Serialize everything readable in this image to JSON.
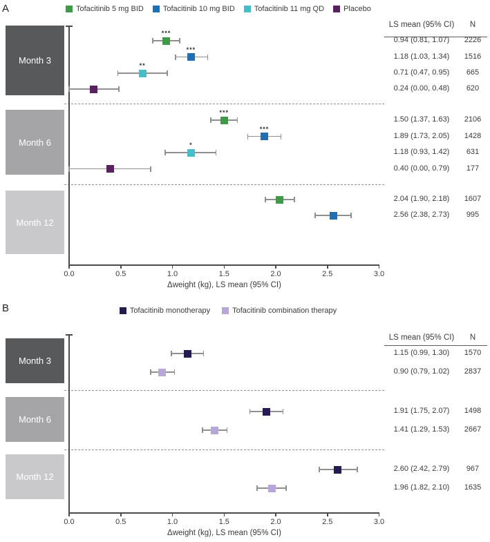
{
  "chart_data": [
    {
      "type": "forest",
      "panel_label": "A",
      "xlabel": "Δweight (kg), LS mean (95% CI)",
      "xlim": [
        0.0,
        3.0
      ],
      "xticks": [
        "0.0",
        "0.5",
        "1.0",
        "1.5",
        "2.0",
        "2.5",
        "3.0"
      ],
      "grid": false,
      "legend_position": "top",
      "legend": [
        {
          "label": "Tofacitinib 5 mg BID",
          "color": "#3d9b45"
        },
        {
          "label": "Tofacitinib 10 mg BID",
          "color": "#1e6fb4"
        },
        {
          "label": "Tofacitinib 11 mg QD",
          "color": "#44bfca"
        },
        {
          "label": "Placebo",
          "color": "#5a2161"
        }
      ],
      "table_headers": [
        "LS mean (95% CI)",
        "N"
      ],
      "groups": [
        {
          "label": "Month 3",
          "box_color": "#58595b",
          "rows": [
            {
              "series": "Tofacitinib 5 mg BID",
              "mean": 0.94,
              "ci": [
                0.81,
                1.07
              ],
              "ci_text": "0.94 (0.81, 1.07)",
              "n": "2226",
              "sig": "***"
            },
            {
              "series": "Tofacitinib 10 mg BID",
              "mean": 1.18,
              "ci": [
                1.03,
                1.34
              ],
              "ci_text": "1.18 (1.03, 1.34)",
              "n": "1516",
              "sig": "***"
            },
            {
              "series": "Tofacitinib 11 mg QD",
              "mean": 0.71,
              "ci": [
                0.47,
                0.95
              ],
              "ci_text": "0.71 (0.47, 0.95)",
              "n": "665",
              "sig": "**"
            },
            {
              "series": "Placebo",
              "mean": 0.24,
              "ci": [
                0.0,
                0.48
              ],
              "ci_text": "0.24 (0.00, 0.48)",
              "n": "620",
              "sig": ""
            }
          ]
        },
        {
          "label": "Month 6",
          "box_color": "#a5a5a7",
          "rows": [
            {
              "series": "Tofacitinib 5 mg BID",
              "mean": 1.5,
              "ci": [
                1.37,
                1.63
              ],
              "ci_text": "1.50 (1.37, 1.63)",
              "n": "2106",
              "sig": "***"
            },
            {
              "series": "Tofacitinib 10 mg BID",
              "mean": 1.89,
              "ci": [
                1.73,
                2.05
              ],
              "ci_text": "1.89 (1.73, 2.05)",
              "n": "1428",
              "sig": "***"
            },
            {
              "series": "Tofacitinib 11 mg QD",
              "mean": 1.18,
              "ci": [
                0.93,
                1.42
              ],
              "ci_text": "1.18 (0.93, 1.42)",
              "n": "631",
              "sig": "*"
            },
            {
              "series": "Placebo",
              "mean": 0.4,
              "ci": [
                0.0,
                0.79
              ],
              "ci_text": "0.40 (0.00, 0.79)",
              "n": "177",
              "sig": ""
            }
          ]
        },
        {
          "label": "Month 12",
          "box_color": "#c9c9cb",
          "rows": [
            {
              "series": "Tofacitinib 5 mg BID",
              "mean": 2.04,
              "ci": [
                1.9,
                2.18
              ],
              "ci_text": "2.04 (1.90, 2.18)",
              "n": "1607",
              "sig": ""
            },
            {
              "series": "Tofacitinib 10 mg BID",
              "mean": 2.56,
              "ci": [
                2.38,
                2.73
              ],
              "ci_text": "2.56 (2.38, 2.73)",
              "n": "995",
              "sig": ""
            }
          ]
        }
      ]
    },
    {
      "type": "forest",
      "panel_label": "B",
      "xlabel": "Δweight (kg), LS mean (95% CI)",
      "xlim": [
        0.0,
        3.0
      ],
      "xticks": [
        "0.0",
        "0.5",
        "1.0",
        "1.5",
        "2.0",
        "2.5",
        "3.0"
      ],
      "grid": false,
      "legend_position": "top",
      "legend": [
        {
          "label": "Tofacitinib monotherapy",
          "color": "#251a52"
        },
        {
          "label": "Tofacitinib combination therapy",
          "color": "#b7a6d9"
        }
      ],
      "table_headers": [
        "LS mean (95% CI)",
        "N"
      ],
      "groups": [
        {
          "label": "Month 3",
          "box_color": "#58595b",
          "rows": [
            {
              "series": "Tofacitinib monotherapy",
              "mean": 1.15,
              "ci": [
                0.99,
                1.3
              ],
              "ci_text": "1.15 (0.99, 1.30)",
              "n": "1570",
              "sig": ""
            },
            {
              "series": "Tofacitinib combination therapy",
              "mean": 0.9,
              "ci": [
                0.79,
                1.02
              ],
              "ci_text": "0.90 (0.79, 1.02)",
              "n": "2837",
              "sig": ""
            }
          ]
        },
        {
          "label": "Month 6",
          "box_color": "#a5a5a7",
          "rows": [
            {
              "series": "Tofacitinib monotherapy",
              "mean": 1.91,
              "ci": [
                1.75,
                2.07
              ],
              "ci_text": "1.91 (1.75, 2.07)",
              "n": "1498",
              "sig": ""
            },
            {
              "series": "Tofacitinib combination therapy",
              "mean": 1.41,
              "ci": [
                1.29,
                1.53
              ],
              "ci_text": "1.41 (1.29, 1.53)",
              "n": "2667",
              "sig": ""
            }
          ]
        },
        {
          "label": "Month 12",
          "box_color": "#c9c9cb",
          "rows": [
            {
              "series": "Tofacitinib monotherapy",
              "mean": 2.6,
              "ci": [
                2.42,
                2.79
              ],
              "ci_text": "2.60 (2.42, 2.79)",
              "n": "967",
              "sig": ""
            },
            {
              "series": "Tofacitinib combination therapy",
              "mean": 1.96,
              "ci": [
                1.82,
                2.1
              ],
              "ci_text": "1.96 (1.82, 2.10)",
              "n": "1635",
              "sig": ""
            }
          ]
        }
      ]
    }
  ]
}
